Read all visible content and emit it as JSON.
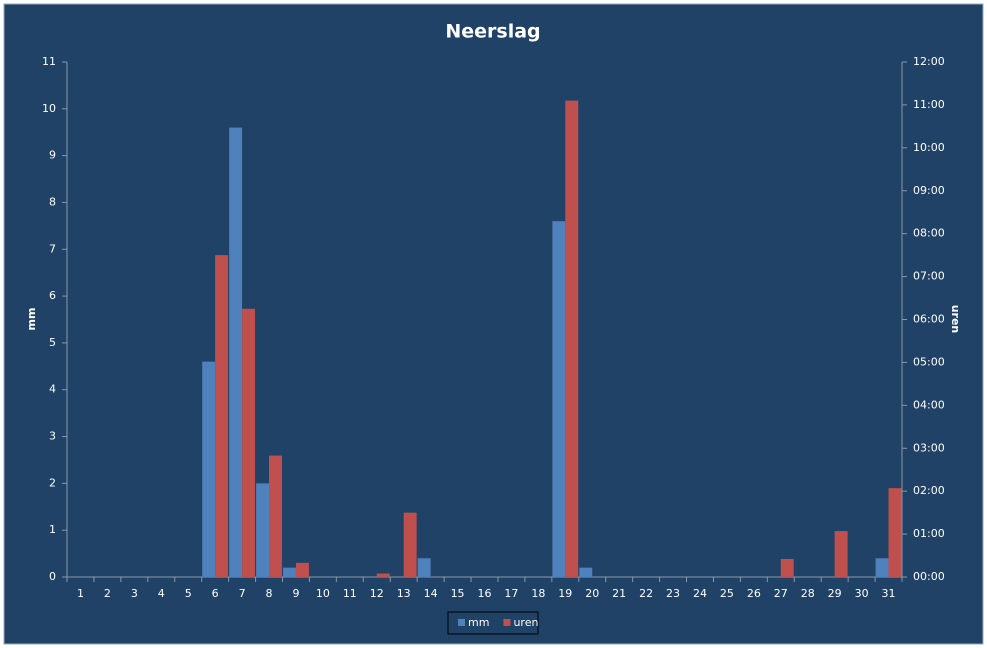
{
  "chart_data": {
    "type": "bar",
    "title": "Neerslag",
    "y_label": "mm",
    "y2_label": "uren",
    "categories": [
      "1",
      "2",
      "3",
      "4",
      "5",
      "6",
      "7",
      "8",
      "9",
      "10",
      "11",
      "12",
      "13",
      "14",
      "15",
      "16",
      "17",
      "18",
      "19",
      "20",
      "21",
      "22",
      "23",
      "24",
      "25",
      "26",
      "27",
      "28",
      "29",
      "30",
      "31"
    ],
    "series": [
      {
        "name": "mm",
        "color": "#4f81bd",
        "values": [
          0,
          0,
          0,
          0,
          0,
          4.6,
          9.6,
          2.0,
          0.2,
          0,
          0,
          0,
          0,
          0.4,
          0,
          0,
          0,
          0,
          7.6,
          0.2,
          0,
          0,
          0,
          0,
          0,
          0,
          0,
          0,
          0,
          0,
          0.4
        ]
      },
      {
        "name": "uren",
        "color": "#c0504d",
        "axis": "y2",
        "values": [
          0,
          0,
          0,
          0,
          0,
          7.5,
          6.25,
          2.83,
          0.33,
          0,
          0,
          0.08,
          1.5,
          0,
          0,
          0,
          0,
          0,
          11.1,
          0,
          0,
          0,
          0,
          0,
          0,
          0,
          0.42,
          0,
          1.07,
          0,
          2.07
        ]
      }
    ],
    "ylim": [
      0,
      11
    ],
    "yticks": [
      0,
      1,
      2,
      3,
      4,
      5,
      6,
      7,
      8,
      9,
      10,
      11
    ],
    "y2lim": [
      0,
      12
    ],
    "y2ticks": [
      {
        "value": 0,
        "label": "00:00"
      },
      {
        "value": 1,
        "label": "01:00"
      },
      {
        "value": 2,
        "label": "02:00"
      },
      {
        "value": 3,
        "label": "03:00"
      },
      {
        "value": 4,
        "label": "04:00"
      },
      {
        "value": 5,
        "label": "05:00"
      },
      {
        "value": 6,
        "label": "06:00"
      },
      {
        "value": 7,
        "label": "07:00"
      },
      {
        "value": 8,
        "label": "08:00"
      },
      {
        "value": 9,
        "label": "09:00"
      },
      {
        "value": 10,
        "label": "10:00"
      },
      {
        "value": 11,
        "label": "11:00"
      },
      {
        "value": 12,
        "label": "12:00"
      }
    ],
    "grid": false,
    "legend": "bottom"
  }
}
